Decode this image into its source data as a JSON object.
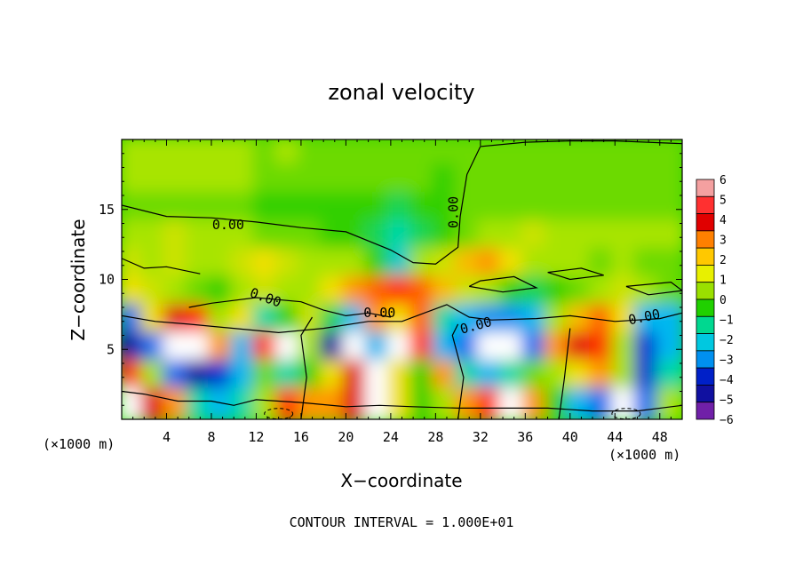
{
  "chart_data": {
    "type": "heatmap",
    "title": "zonal velocity",
    "xlabel": "X−coordinate",
    "ylabel": "Z−coordinate",
    "xunit_left": "(×1000 m)",
    "xunit_right": "(×1000 m)",
    "footer": "CONTOUR INTERVAL = 1.000E+01",
    "xlim": [
      0,
      50
    ],
    "ylim": [
      0,
      20
    ],
    "x_ticks": [
      4,
      8,
      12,
      16,
      20,
      24,
      28,
      32,
      36,
      40,
      44,
      48
    ],
    "y_ticks": [
      5,
      10,
      15
    ],
    "colorbar": {
      "ticks": [
        6,
        5,
        4,
        3,
        2,
        1,
        0,
        -1,
        -2,
        -3,
        -4,
        -5,
        -6
      ],
      "colors": [
        "#f4a0a0",
        "#ff3030",
        "#e00000",
        "#ff8000",
        "#ffc800",
        "#e8f000",
        "#9ae000",
        "#20d000",
        "#00d890",
        "#00c8e0",
        "#0090f0",
        "#0020c8",
        "#1010a0",
        "#7020a8"
      ]
    },
    "contour_labels": [
      {
        "text": "0.00",
        "x": 9.5,
        "y": 13.6,
        "rotate": 0
      },
      {
        "text": "0.00",
        "x": 12.7,
        "y": 8.4,
        "rotate": 20
      },
      {
        "text": "0.00",
        "x": 23.0,
        "y": 7.3,
        "rotate": 0
      },
      {
        "text": "0.00",
        "x": 30.0,
        "y": 14.8,
        "rotate": -90
      },
      {
        "text": "0.00",
        "x": 31.7,
        "y": 6.4,
        "rotate": -15
      },
      {
        "text": "0.00",
        "x": 46.7,
        "y": 7.0,
        "rotate": -12
      }
    ],
    "grid": "x",
    "rows": [
      {
        "z": 19,
        "values": [
          1,
          1,
          1,
          1,
          1,
          1,
          0.5,
          1,
          0.5,
          0.5,
          0.5,
          0.5,
          0.5,
          0.5,
          0.5,
          0.5,
          0.5,
          0.5,
          0.5,
          0.5,
          0.5,
          0.5,
          0.5,
          0.5,
          0.5
        ]
      },
      {
        "z": 17,
        "values": [
          1,
          1,
          1,
          1,
          1,
          1,
          0.5,
          0.5,
          0.5,
          0.5,
          0.5,
          0.5,
          0.5,
          0.5,
          0,
          0.5,
          0.5,
          0.5,
          0.5,
          0.5,
          0.5,
          0.5,
          0.5,
          0.5,
          0.5
        ]
      },
      {
        "z": 15,
        "values": [
          0.5,
          0.5,
          0.5,
          0.5,
          0.5,
          0.5,
          0,
          0,
          0,
          0,
          0,
          0,
          -0.5,
          0,
          0,
          0.5,
          0.5,
          0.5,
          0.5,
          0.5,
          0.5,
          0.5,
          0.5,
          0.5,
          0.5
        ]
      },
      {
        "z": 13,
        "values": [
          1,
          1,
          1.5,
          1,
          1,
          1,
          0.5,
          0.5,
          0.5,
          0,
          0,
          -0.5,
          -1,
          -0.5,
          0,
          0.5,
          1,
          1,
          1.5,
          1,
          1,
          1,
          1,
          1,
          1
        ]
      },
      {
        "z": 11,
        "values": [
          1.5,
          1,
          1.5,
          1,
          1,
          1.5,
          2,
          1.5,
          1,
          1,
          1,
          0,
          -1.5,
          1,
          1.5,
          2.5,
          3,
          2,
          1,
          1,
          1,
          0.5,
          1,
          0.5,
          0.5
        ]
      },
      {
        "z": 9,
        "values": [
          2,
          1.5,
          1,
          0.5,
          0,
          1,
          1.5,
          1,
          1,
          2,
          3,
          3.5,
          4,
          3.5,
          2.5,
          1.5,
          1,
          0,
          -0.5,
          0,
          0.5,
          1,
          1.5,
          1,
          0.5
        ]
      },
      {
        "z": 7,
        "values": [
          -3,
          2,
          5,
          4,
          1,
          2,
          -1,
          0,
          1.5,
          -0.5,
          -2,
          3,
          2,
          3.5,
          -1,
          -2,
          -2.5,
          -2.5,
          -2,
          1,
          2.5,
          3.5,
          2,
          -2,
          -2
        ]
      },
      {
        "z": 5,
        "values": [
          -5,
          -3,
          6,
          6,
          3,
          -2,
          4,
          6,
          1,
          -5,
          -6,
          -2,
          6,
          4,
          -2,
          -3,
          -6,
          -6,
          -3,
          3,
          5,
          4,
          1,
          -4,
          -2
        ]
      },
      {
        "z": 3,
        "values": [
          4,
          1,
          -3,
          -5,
          -4,
          -2,
          0.5,
          -1,
          0,
          2,
          5,
          6,
          2,
          0,
          3,
          -1,
          -2,
          -1,
          0.5,
          1,
          2,
          3,
          1,
          -4,
          -1
        ]
      },
      {
        "z": 1,
        "values": [
          6,
          5,
          3,
          -1,
          -2,
          -1,
          1,
          4,
          3,
          3,
          5,
          6,
          2,
          0,
          1,
          3,
          4,
          6,
          3,
          0,
          -2,
          -3,
          -6,
          -3,
          1
        ]
      }
    ]
  }
}
